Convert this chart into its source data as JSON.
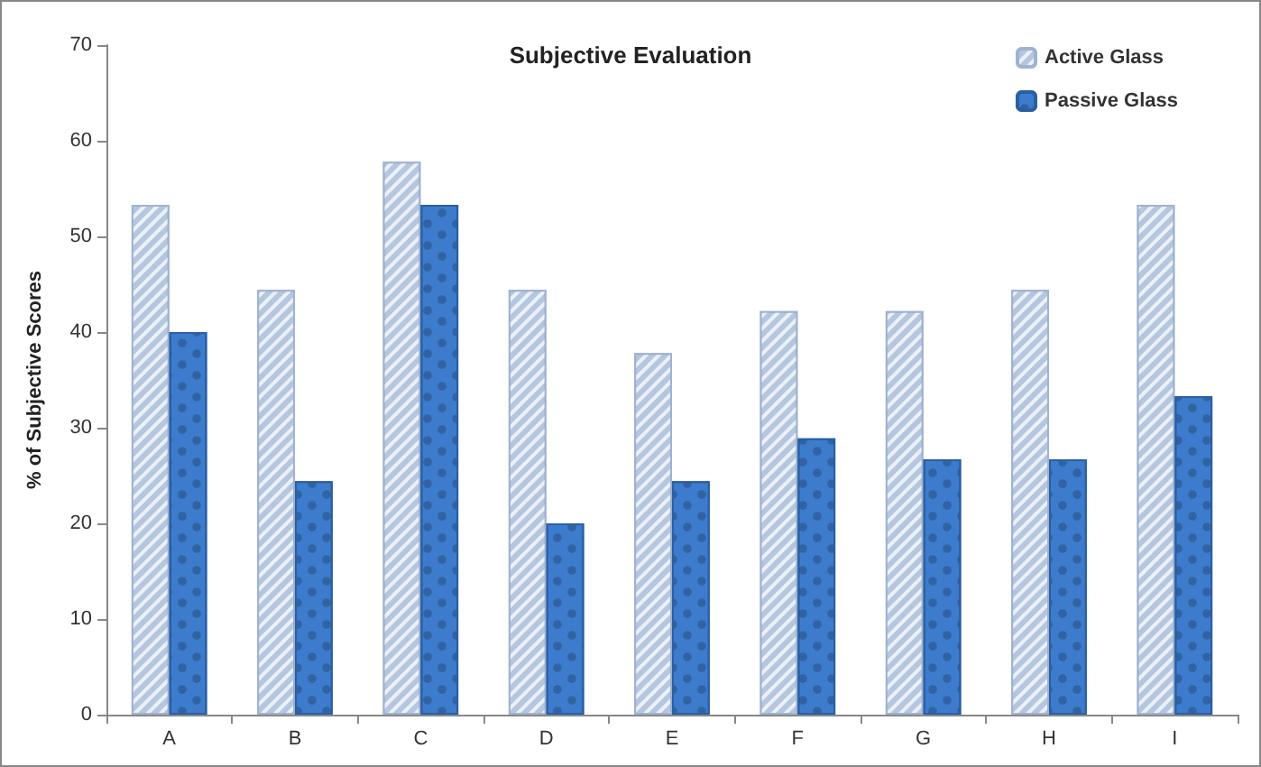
{
  "chart_data": {
    "type": "bar",
    "title": "Subjective Evaluation",
    "ylabel": "% of Subjective Scores",
    "categories": [
      "A",
      "B",
      "C",
      "D",
      "E",
      "F",
      "G",
      "H",
      "I"
    ],
    "series": [
      {
        "name": "Active Glass",
        "color": "#b4c6e0",
        "values": [
          53.3,
          44.4,
          57.8,
          44.4,
          37.8,
          42.2,
          42.2,
          44.4,
          53.3
        ]
      },
      {
        "name": "Passive Glass",
        "color": "#3d7ccc",
        "values": [
          40,
          24.4,
          53.3,
          20,
          24.4,
          28.9,
          26.7,
          26.7,
          33.3
        ]
      }
    ],
    "ylim": [
      0,
      70
    ],
    "yticks": [
      0,
      10,
      20,
      30,
      40,
      50,
      60,
      70
    ],
    "grid": false,
    "legend": "top right"
  }
}
